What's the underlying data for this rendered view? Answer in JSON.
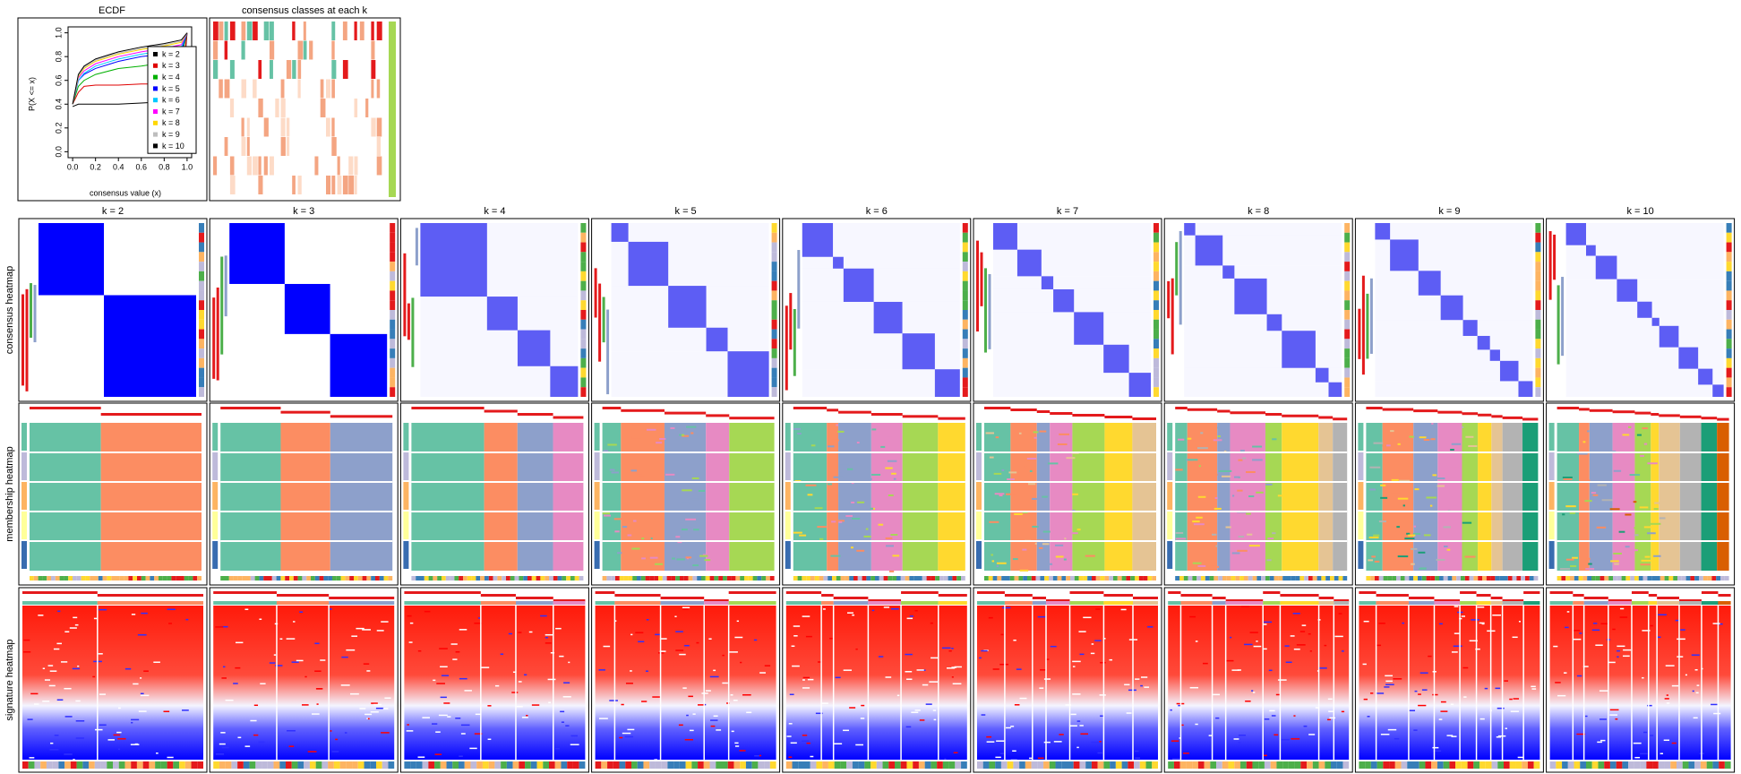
{
  "chart_data": {
    "type": "line",
    "title": "ECDF",
    "xlabel": "consensus value (x)",
    "ylabel": "P(X <= x)",
    "x": [
      0,
      0.05,
      0.1,
      0.2,
      0.4,
      0.6,
      0.8,
      0.95,
      1.0
    ],
    "xlim": [
      -0.04,
      1.04
    ],
    "ylim": [
      -0.05,
      1.05
    ],
    "xticks": [
      {
        "value": 0,
        "label": "0.0"
      },
      {
        "value": 0.2,
        "label": "0.2"
      },
      {
        "value": 0.4,
        "label": "0.4"
      },
      {
        "value": 0.6,
        "label": "0.6"
      },
      {
        "value": 0.8,
        "label": "0.8"
      },
      {
        "value": 1,
        "label": "1.0"
      }
    ],
    "yticks": [
      {
        "value": 0,
        "label": "0.0"
      },
      {
        "value": 0.2,
        "label": "0.2"
      },
      {
        "value": 0.4,
        "label": "0.4"
      },
      {
        "value": 0.6,
        "label": "0.6"
      },
      {
        "value": 0.8,
        "label": "0.8"
      },
      {
        "value": 1,
        "label": "1.0"
      }
    ],
    "legend": "right",
    "series": [
      {
        "name": "k = 2",
        "color": "#000000",
        "values": [
          0.38,
          0.4,
          0.4,
          0.4,
          0.4,
          0.41,
          0.42,
          0.42,
          1
        ]
      },
      {
        "name": "k = 3",
        "color": "#df0000",
        "values": [
          0.4,
          0.5,
          0.55,
          0.56,
          0.56,
          0.57,
          0.57,
          0.58,
          1
        ]
      },
      {
        "name": "k = 4",
        "color": "#00b000",
        "values": [
          0.4,
          0.55,
          0.6,
          0.65,
          0.7,
          0.72,
          0.75,
          0.8,
          1
        ]
      },
      {
        "name": "k = 5",
        "color": "#0000ff",
        "values": [
          0.4,
          0.6,
          0.65,
          0.7,
          0.76,
          0.8,
          0.82,
          0.85,
          1
        ]
      },
      {
        "name": "k = 6",
        "color": "#00c8ff",
        "values": [
          0.4,
          0.6,
          0.66,
          0.72,
          0.78,
          0.82,
          0.85,
          0.88,
          1
        ]
      },
      {
        "name": "k = 7",
        "color": "#ff00ff",
        "values": [
          0.4,
          0.62,
          0.68,
          0.74,
          0.8,
          0.84,
          0.87,
          0.9,
          1
        ]
      },
      {
        "name": "k = 8",
        "color": "#ffd700",
        "values": [
          0.4,
          0.63,
          0.7,
          0.76,
          0.82,
          0.86,
          0.89,
          0.92,
          1
        ]
      },
      {
        "name": "k = 9",
        "color": "#bebebe",
        "values": [
          0.4,
          0.64,
          0.71,
          0.77,
          0.83,
          0.87,
          0.9,
          0.93,
          1
        ]
      },
      {
        "name": "k = 10",
        "color": "#000000",
        "values": [
          0.4,
          0.65,
          0.72,
          0.78,
          0.84,
          0.88,
          0.91,
          0.94,
          1
        ]
      }
    ]
  },
  "panels": {
    "classes_title": "consensus classes at each k",
    "k_labels": [
      "k = 2",
      "k = 3",
      "k = 4",
      "k = 5",
      "k = 6",
      "k = 7",
      "k = 8",
      "k = 9",
      "k = 10"
    ],
    "row_labels": [
      "consensus heatmap",
      "membership heatmap",
      "signature heatmap"
    ]
  }
}
